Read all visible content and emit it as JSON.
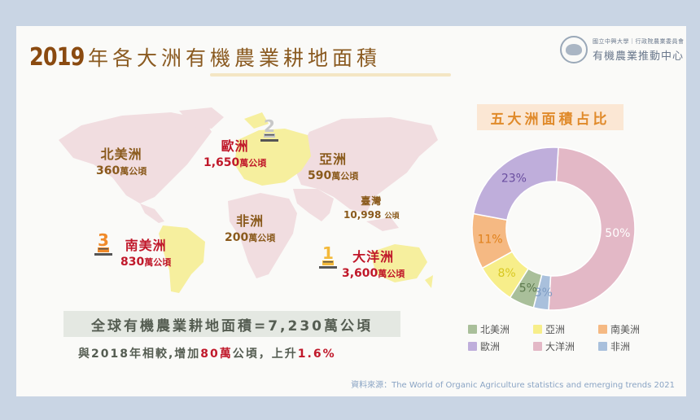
{
  "header": {
    "title_year": "2019",
    "title_text": "年各大洲有機農業耕地面積",
    "logo_line1": "國立中興大學｜行政院農業委員會",
    "logo_line2": "有機農業推動中心"
  },
  "map": {
    "regions": [
      {
        "key": "north_america",
        "name": "北美洲",
        "value": "360",
        "unit": "萬公頃",
        "rank": null
      },
      {
        "key": "europe",
        "name": "歐洲",
        "value": "1,650",
        "unit": "萬公頃",
        "rank": "2"
      },
      {
        "key": "asia",
        "name": "亞洲",
        "value": "590",
        "unit": "萬公頃",
        "rank": null
      },
      {
        "key": "taiwan",
        "name": "臺灣",
        "value": "10,998",
        "unit": "公頃",
        "rank": null
      },
      {
        "key": "africa",
        "name": "非洲",
        "value": "200",
        "unit": "萬公頃",
        "rank": null
      },
      {
        "key": "south_america",
        "name": "南美洲",
        "value": "830",
        "unit": "萬公頃",
        "rank": "3"
      },
      {
        "key": "oceania",
        "name": "大洋洲",
        "value": "3,600",
        "unit": "萬公頃",
        "rank": "1"
      }
    ]
  },
  "summary": {
    "total": "全球有機農業耕地面積=7,230萬公頃",
    "change_prefix": "與2018年相較,增加",
    "change_amount": "80萬",
    "change_mid": "公頃，上升",
    "change_pct": "1.6%"
  },
  "pie": {
    "title": "五大洲面積占比"
  },
  "source": "資料來源：The World of Organic Agriculture statistics and emerging trends  2021",
  "colors": {
    "north_america": "#a9bf9a",
    "asia": "#f7ee8a",
    "south_america": "#f5b983",
    "europe": "#bfaedb",
    "oceania": "#e3b8c6",
    "africa": "#a9c0dc",
    "brown": "#8a5a1c",
    "red": "#c0182a"
  },
  "chart_data": {
    "type": "pie",
    "title": "五大洲面積占比",
    "donut": true,
    "categories": [
      "大洋洲",
      "非洲",
      "北美洲",
      "亞洲",
      "南美洲",
      "歐洲"
    ],
    "values": [
      50,
      3,
      5,
      8,
      11,
      23
    ],
    "labels": [
      "50%",
      "3%",
      "5%",
      "8%",
      "11%",
      "23%"
    ],
    "colors": [
      "#e3b8c6",
      "#a9c0dc",
      "#a9bf9a",
      "#f7ee8a",
      "#f5b983",
      "#bfaedb"
    ],
    "legend": [
      "北美洲",
      "亞洲",
      "南美洲",
      "歐洲",
      "大洋洲",
      "非洲"
    ],
    "legend_position": "bottom",
    "area_values_10k_ha": {
      "北美洲": 360,
      "歐洲": 1650,
      "亞洲": 590,
      "非洲": 200,
      "南美洲": 830,
      "大洋洲": 3600
    },
    "taiwan_ha": 10998,
    "total_10k_ha": 7230
  }
}
